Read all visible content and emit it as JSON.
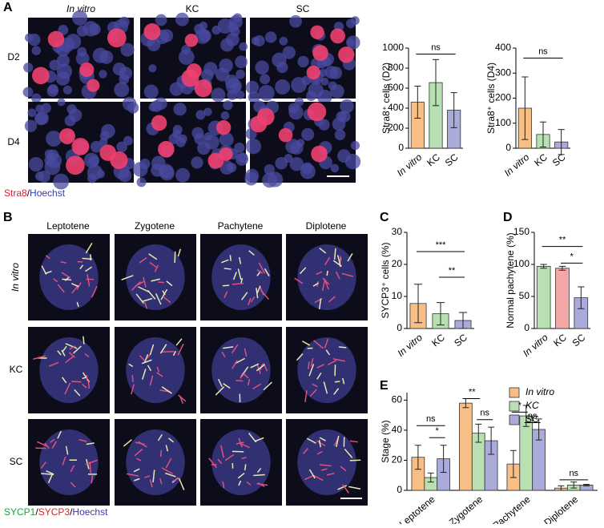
{
  "figure": {
    "panels": [
      "A",
      "B",
      "C",
      "D",
      "E"
    ],
    "a_columns": [
      "In vitro",
      "KC",
      "SC"
    ],
    "a_rows": [
      "D2",
      "D4"
    ],
    "a_stain": [
      "Stra8",
      "/",
      "Hoechst"
    ],
    "b_columns": [
      "Leptotene",
      "Zygotene",
      "Pachytene",
      "Diplotene"
    ],
    "b_rows": [
      "In vitro",
      "KC",
      "SC"
    ],
    "b_stain": [
      "SYCP1",
      "/",
      "SYCP3",
      "/",
      "Hoechst"
    ]
  },
  "chart_data": [
    {
      "type": "bar",
      "ylabel": "Stra8⁺ cells (D2)",
      "categories": [
        "In vitro",
        "KC",
        "SC"
      ],
      "values": [
        460,
        655,
        380
      ],
      "errors": [
        160,
        230,
        175
      ],
      "colors": [
        "#f7bf86",
        "#b9e0b2",
        "#aaaadb"
      ],
      "ylim": [
        0,
        1000
      ],
      "yticks": [
        0,
        200,
        400,
        600,
        800,
        1000
      ],
      "annotations": [
        "ns"
      ]
    },
    {
      "type": "bar",
      "ylabel": "Stra8⁺ cells (D4)",
      "categories": [
        "In vitro",
        "KC",
        "SC"
      ],
      "values": [
        160,
        55,
        25
      ],
      "errors": [
        125,
        50,
        50
      ],
      "colors": [
        "#f7bf86",
        "#b9e0b2",
        "#aaaadb"
      ],
      "ylim": [
        0,
        400
      ],
      "yticks": [
        0,
        100,
        200,
        300,
        400
      ],
      "annotations": [
        "ns"
      ]
    },
    {
      "type": "bar",
      "ylabel": "SYCP3⁺ cells (%)",
      "categories": [
        "In vitro",
        "KC",
        "SC"
      ],
      "values": [
        7.8,
        4.6,
        2.5
      ],
      "errors": [
        6,
        3.5,
        2.5
      ],
      "colors": [
        "#f7bf86",
        "#b9e0b2",
        "#aaaadb"
      ],
      "ylim": [
        0,
        30
      ],
      "yticks": [
        0,
        10,
        20,
        30
      ],
      "annotations": [
        "***",
        "**"
      ]
    },
    {
      "type": "bar",
      "ylabel": "Normal pachytene (%)",
      "categories": [
        "In vitro",
        "KC",
        "SC"
      ],
      "values": [
        97,
        94,
        48
      ],
      "errors": [
        3,
        3,
        17
      ],
      "colors": [
        "#b9e0b2",
        "#f4a7a7",
        "#aaaadb"
      ],
      "ylim": [
        0,
        150
      ],
      "yticks": [
        0,
        50,
        100,
        150
      ],
      "annotations": [
        "**",
        "*"
      ]
    },
    {
      "type": "grouped_bar",
      "ylabel": "Stage (%)",
      "categories": [
        "Leptotene",
        "Zygotene",
        "Pachytene",
        "Diplotene"
      ],
      "series": [
        {
          "name": "In vitro",
          "color": "#f7bf86",
          "values": [
            22,
            58,
            17.5,
            1.5
          ],
          "errors": [
            8,
            3,
            9,
            1.5
          ]
        },
        {
          "name": "KC",
          "color": "#b9e0b2",
          "values": [
            8.5,
            38,
            49.5,
            3.5
          ],
          "errors": [
            3,
            6,
            7,
            2
          ]
        },
        {
          "name": "SC",
          "color": "#aaaadb",
          "values": [
            21,
            33,
            40.5,
            3.5
          ],
          "errors": [
            9,
            9,
            7,
            0.5
          ]
        }
      ],
      "ylim": [
        0,
        65
      ],
      "yticks": [
        0,
        20,
        40,
        60
      ],
      "annotations": [
        "ns",
        "*",
        "**",
        "ns",
        "*",
        "ns",
        "ns"
      ]
    }
  ]
}
